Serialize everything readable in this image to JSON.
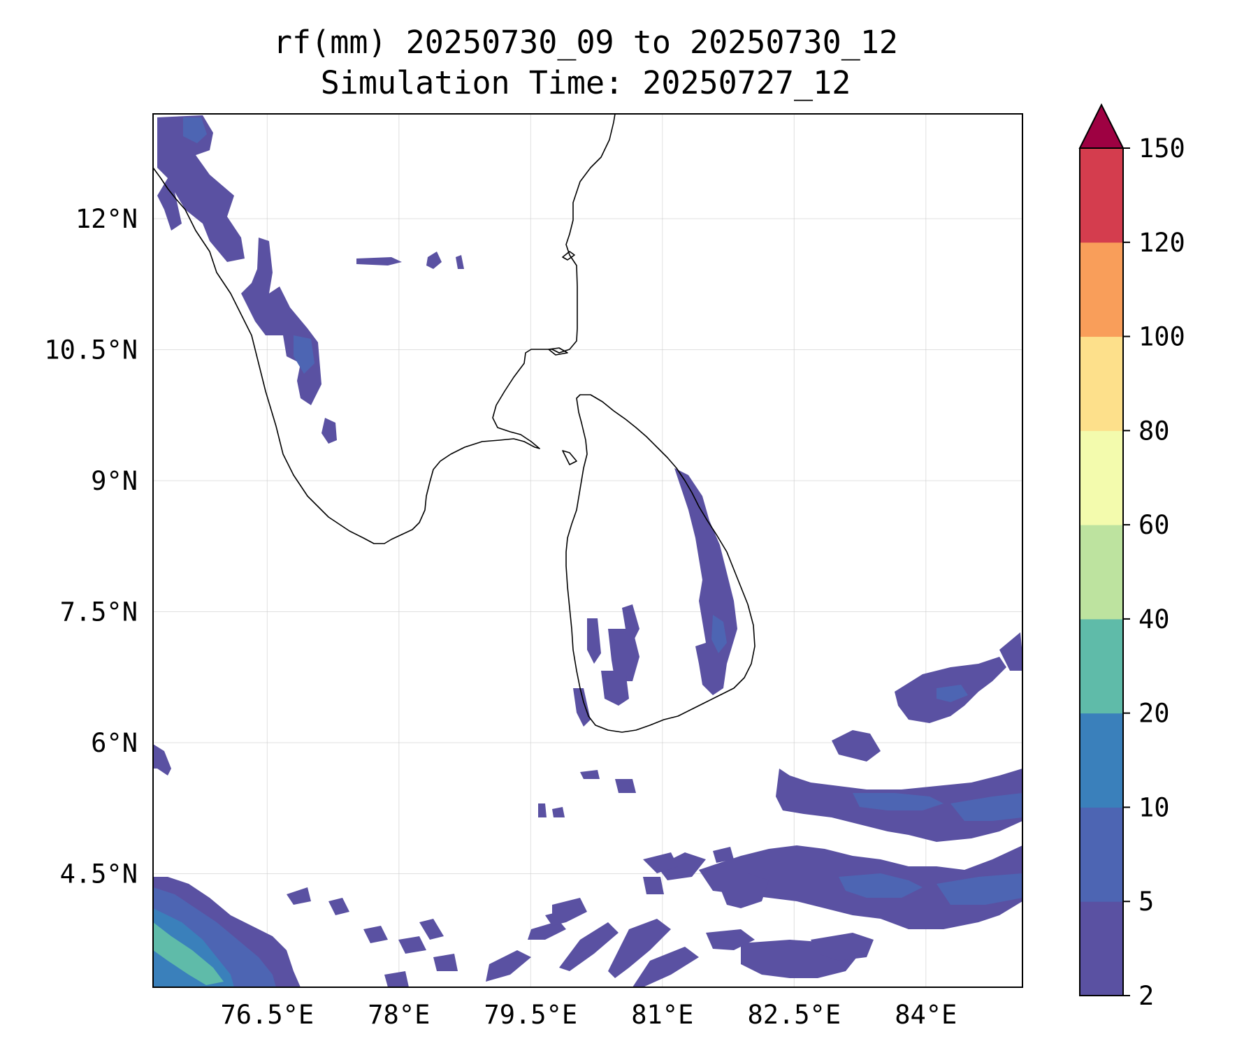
{
  "title_line1": "rf(mm) 20250730_09 to 20250730_12",
  "title_line2": "Simulation Time: 20250727_12",
  "map": {
    "lon_range": [
      75.2,
      85.1
    ],
    "lat_range": [
      3.2,
      13.2
    ],
    "lon_ticks": [
      {
        "value": 76.5,
        "label": "76.5°E"
      },
      {
        "value": 78.0,
        "label": "78°E"
      },
      {
        "value": 79.5,
        "label": "79.5°E"
      },
      {
        "value": 81.0,
        "label": "81°E"
      },
      {
        "value": 82.5,
        "label": "82.5°E"
      },
      {
        "value": 84.0,
        "label": "84°E"
      }
    ],
    "lat_ticks": [
      {
        "value": 12.0,
        "label": "12°N"
      },
      {
        "value": 10.5,
        "label": "10.5°N"
      },
      {
        "value": 9.0,
        "label": "9°N"
      },
      {
        "value": 7.5,
        "label": "7.5°N"
      },
      {
        "value": 6.0,
        "label": "6°N"
      },
      {
        "value": 4.5,
        "label": "4.5°N"
      }
    ],
    "gridlines": true
  },
  "colorbar": {
    "levels": [
      {
        "value": 2,
        "label": "2"
      },
      {
        "value": 5,
        "label": "5"
      },
      {
        "value": 10,
        "label": "10"
      },
      {
        "value": 20,
        "label": "20"
      },
      {
        "value": 40,
        "label": "40"
      },
      {
        "value": 60,
        "label": "60"
      },
      {
        "value": 80,
        "label": "80"
      },
      {
        "value": 100,
        "label": "100"
      },
      {
        "value": 120,
        "label": "120"
      },
      {
        "value": 150,
        "label": "150"
      }
    ],
    "colors": [
      "#5a51a2",
      "#4d65b3",
      "#3a80bb",
      "#5fbba9",
      "#bde39f",
      "#f3fbad",
      "#fde08b",
      "#f99e5a",
      "#d43d4e"
    ],
    "extend_color": "#9e0142"
  }
}
